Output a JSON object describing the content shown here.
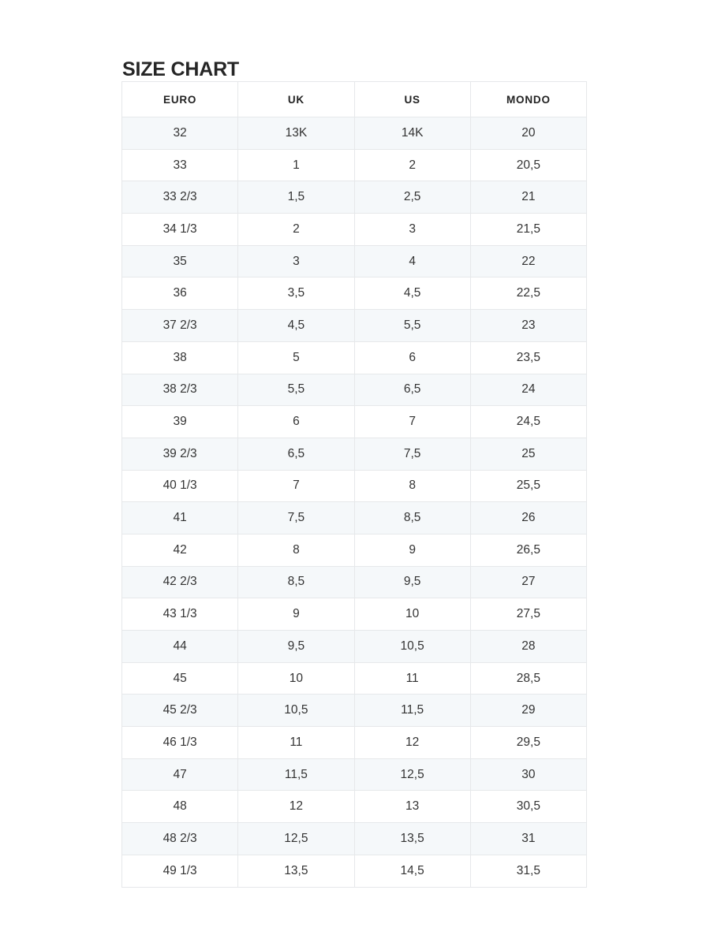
{
  "page": {
    "title": "SIZE CHART"
  },
  "sizeChart": {
    "columns": [
      "EURO",
      "UK",
      "US",
      "MONDO"
    ],
    "rows": [
      [
        "32",
        "13K",
        "14K",
        "20"
      ],
      [
        "33",
        "1",
        "2",
        "20,5"
      ],
      [
        "33 2/3",
        "1,5",
        "2,5",
        "21"
      ],
      [
        "34 1/3",
        "2",
        "3",
        "21,5"
      ],
      [
        "35",
        "3",
        "4",
        "22"
      ],
      [
        "36",
        "3,5",
        "4,5",
        "22,5"
      ],
      [
        "37 2/3",
        "4,5",
        "5,5",
        "23"
      ],
      [
        "38",
        "5",
        "6",
        "23,5"
      ],
      [
        "38 2/3",
        "5,5",
        "6,5",
        "24"
      ],
      [
        "39",
        "6",
        "7",
        "24,5"
      ],
      [
        "39 2/3",
        "6,5",
        "7,5",
        "25"
      ],
      [
        "40 1/3",
        "7",
        "8",
        "25,5"
      ],
      [
        "41",
        "7,5",
        "8,5",
        "26"
      ],
      [
        "42",
        "8",
        "9",
        "26,5"
      ],
      [
        "42 2/3",
        "8,5",
        "9,5",
        "27"
      ],
      [
        "43 1/3",
        "9",
        "10",
        "27,5"
      ],
      [
        "44",
        "9,5",
        "10,5",
        "28"
      ],
      [
        "45",
        "10",
        "11",
        "28,5"
      ],
      [
        "45 2/3",
        "10,5",
        "11,5",
        "29"
      ],
      [
        "46 1/3",
        "11",
        "12",
        "29,5"
      ],
      [
        "47",
        "11,5",
        "12,5",
        "30"
      ],
      [
        "48",
        "12",
        "13",
        "30,5"
      ],
      [
        "48 2/3",
        "12,5",
        "13,5",
        "31"
      ],
      [
        "49 1/3",
        "13,5",
        "14,5",
        "31,5"
      ]
    ]
  },
  "colors": {
    "stripe": "#f5f8fa",
    "border": "#e6e8ea",
    "heading_text": "#262626",
    "cell_text": "#333333"
  }
}
